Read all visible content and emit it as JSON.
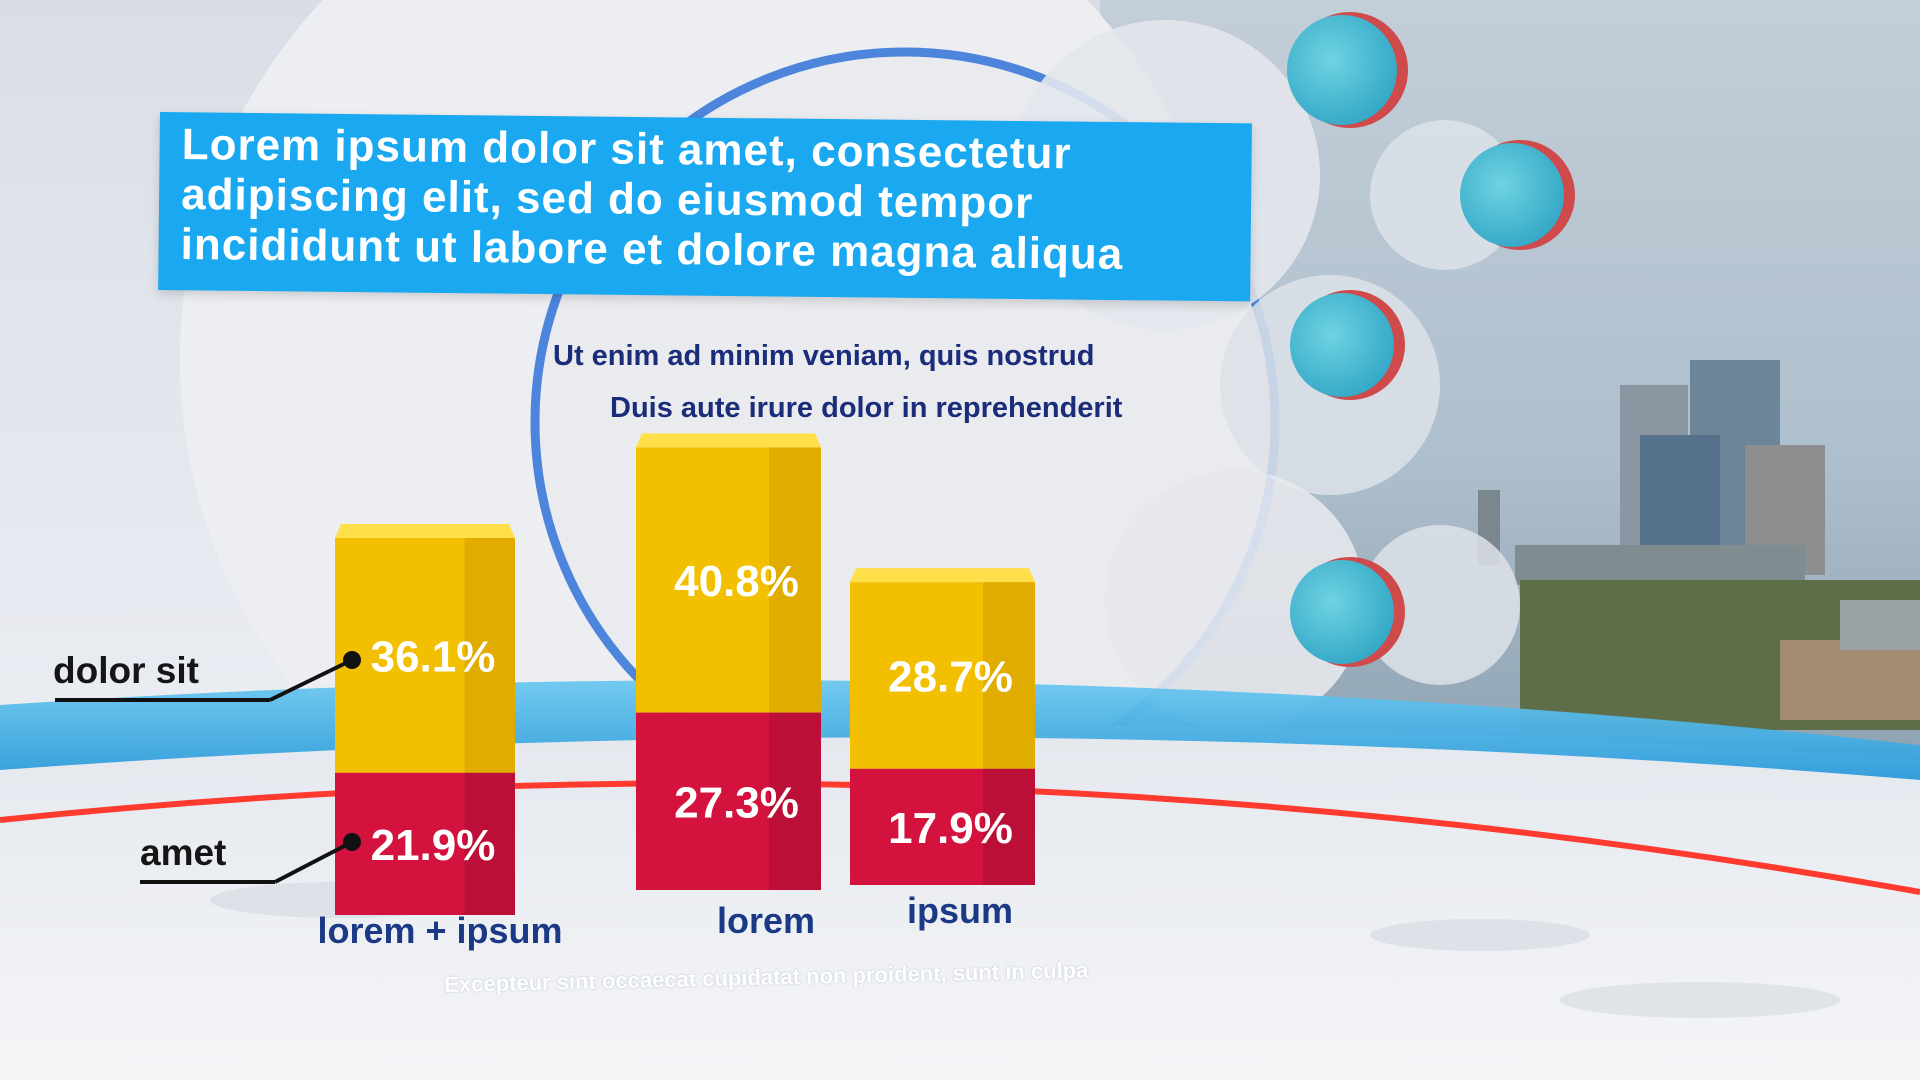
{
  "title": "Lorem ipsum dolor sit amet, consectetur adipiscing elit, sed do eiusmod tempor incididunt ut labore et dolore magna aliqua",
  "subtitle_1": "Ut enim ad minim veniam, quis nostrud",
  "subtitle_2": "Duis aute irure dolor in reprehenderit",
  "legend": {
    "top_label": "dolor sit",
    "bottom_label": "amet"
  },
  "footnote": "Excepteur sint occaecat cupidatat non proident, sunt in culpa",
  "colors": {
    "title_bg": "#1aa9f0",
    "yellow_series": "#f5c400",
    "red_series": "#d4123e",
    "text_dark_blue": "#1b2c7a"
  },
  "chart_data": {
    "type": "bar",
    "stacked": true,
    "categories": [
      "lorem + ipsum",
      "lorem",
      "ipsum"
    ],
    "series": [
      {
        "name": "amet",
        "values": [
          21.9,
          27.3,
          17.9
        ],
        "labels": [
          "21.9%",
          "27.3%",
          "17.9%"
        ]
      },
      {
        "name": "dolor sit",
        "values": [
          36.1,
          40.8,
          28.7
        ],
        "labels": [
          "36.1%",
          "40.8%",
          "28.7%"
        ]
      }
    ],
    "unit": "%"
  }
}
